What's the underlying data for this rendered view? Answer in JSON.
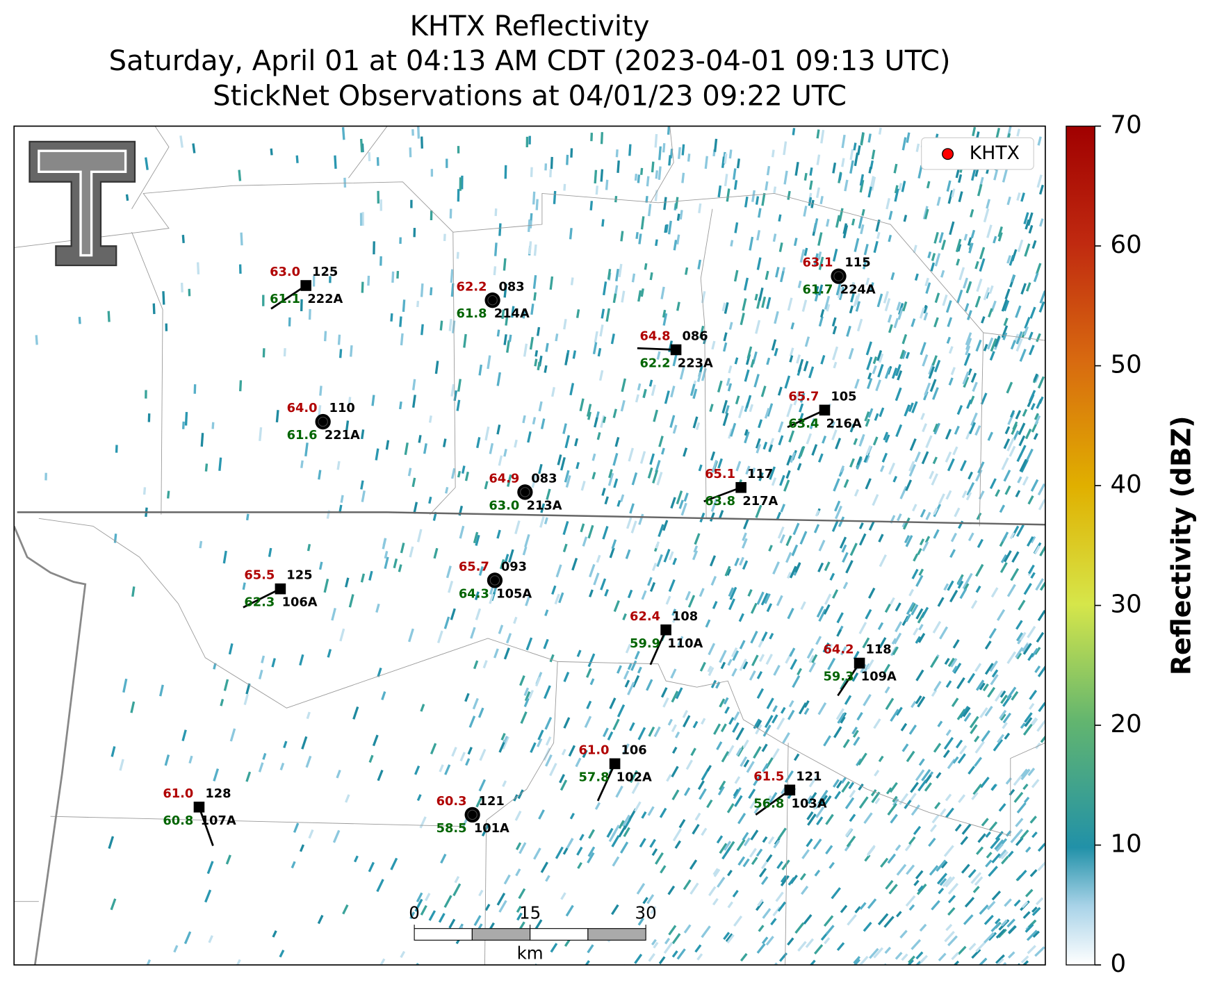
{
  "title_lines": [
    "KHTX Reflectivity",
    "Saturday, April 01 at 04:13 AM CDT (2023-04-01 09:13 UTC)",
    "StickNet Observations at 04/01/23 09:22 UTC"
  ],
  "legend": {
    "label": "KHTX",
    "color": "#ff0000",
    "corner": "upper right"
  },
  "colorbar": {
    "label": "Reflectivity (dBZ)",
    "lim": [
      0,
      70
    ],
    "ticks": [
      0,
      10,
      20,
      30,
      40,
      50,
      60,
      70
    ]
  },
  "scale_bar": {
    "ticks": [
      0,
      15,
      30
    ],
    "unit": "km"
  },
  "stations": [
    {
      "id": "222A",
      "temp": "63.0",
      "dew": "61.1",
      "code": "125",
      "marker": "square"
    },
    {
      "id": "214A",
      "temp": "62.2",
      "dew": "61.8",
      "code": "083",
      "marker": "circle"
    },
    {
      "id": "223A",
      "temp": "64.8",
      "dew": "62.2",
      "code": "086",
      "marker": "square"
    },
    {
      "id": "224A",
      "temp": "63.1",
      "dew": "61.7",
      "code": "115",
      "marker": "circle"
    },
    {
      "id": "221A",
      "temp": "64.0",
      "dew": "61.6",
      "code": "110",
      "marker": "circle"
    },
    {
      "id": "216A",
      "temp": "65.7",
      "dew": "63.4",
      "code": "105",
      "marker": "square"
    },
    {
      "id": "213A",
      "temp": "64.9",
      "dew": "63.0",
      "code": "083",
      "marker": "circle"
    },
    {
      "id": "217A",
      "temp": "65.1",
      "dew": "63.8",
      "code": "117",
      "marker": "square"
    },
    {
      "id": "106A",
      "temp": "65.5",
      "dew": "62.3",
      "code": "125",
      "marker": "square"
    },
    {
      "id": "105A",
      "temp": "65.7",
      "dew": "64.3",
      "code": "093",
      "marker": "circle"
    },
    {
      "id": "110A",
      "temp": "62.4",
      "dew": "59.9",
      "code": "108",
      "marker": "square"
    },
    {
      "id": "109A",
      "temp": "64.2",
      "dew": "59.3",
      "code": "118",
      "marker": "square"
    },
    {
      "id": "102A",
      "temp": "61.0",
      "dew": "57.8",
      "code": "106",
      "marker": "square"
    },
    {
      "id": "103A",
      "temp": "61.5",
      "dew": "56.8",
      "code": "121",
      "marker": "square"
    },
    {
      "id": "107A",
      "temp": "61.0",
      "dew": "60.8",
      "code": "128",
      "marker": "square"
    },
    {
      "id": "101A",
      "temp": "60.3",
      "dew": "58.5",
      "code": "121",
      "marker": "circle"
    }
  ]
}
